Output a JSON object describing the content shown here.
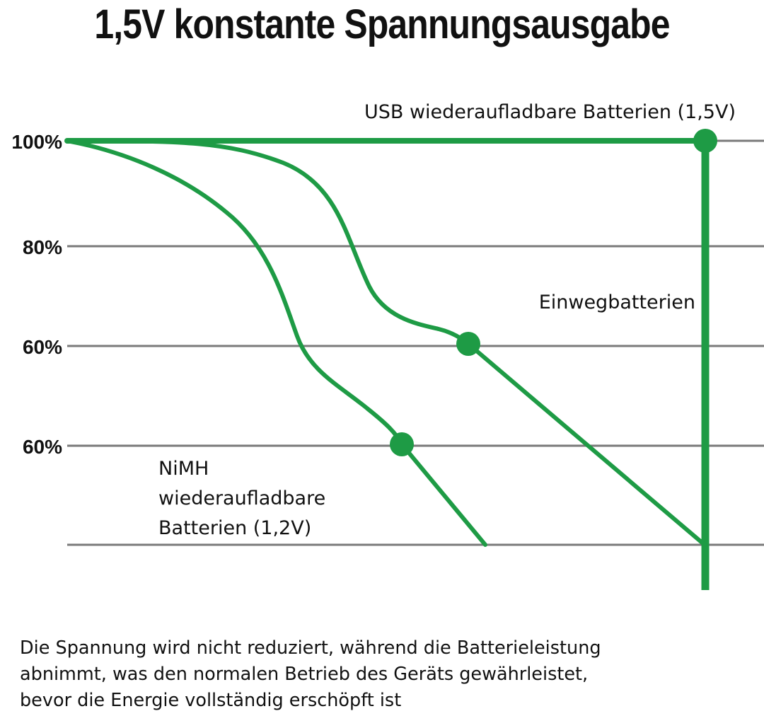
{
  "title": "1,5V konstante Spannungsausgabe",
  "chart_data": {
    "type": "line",
    "title": "1,5V konstante Spannungsausgabe",
    "y_tick_labels": [
      "100%",
      "80%",
      "60%",
      "60%"
    ],
    "grid": true,
    "series": [
      {
        "name": "USB wiederaufladbare Batterien (1,5V)",
        "shape": "constant",
        "start_level": "100%",
        "end_level": "100%",
        "marker_label": "100%"
      },
      {
        "name": "Einwegbatterien",
        "shape": "gradual decline, then linear drop",
        "start_level": "100%",
        "marker_label": "60%"
      },
      {
        "name": "NiMH wiederaufladbare Batterien (1,2V)",
        "name_lines": [
          "NiMH",
          "wiederaufladbare",
          "Batterien (1,2V)"
        ],
        "shape": "early decline, then linear drop",
        "start_level": "100%",
        "marker_label": "60%"
      }
    ],
    "line_color": "#1e9b45",
    "grid_color": "#7a7a7a"
  },
  "caption": [
    "Die Spannung wird nicht reduziert, während die Batterieleistung",
    "abnimmt, was den normalen Betrieb des Geräts gewährleistet,",
    "bevor die Energie vollständig erschöpft ist"
  ]
}
